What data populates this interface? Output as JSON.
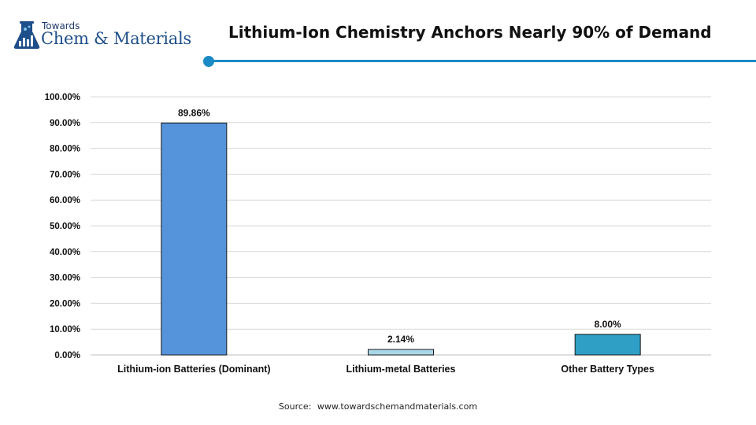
{
  "logo": {
    "top_text": "Towards",
    "main_text": "Chem & Materials",
    "icon": "flask-chart-icon"
  },
  "header": {
    "title": "Lithium-Ion Chemistry Anchors Nearly 90% of Demand",
    "accent_color": "#1a8ac7"
  },
  "chart_data": {
    "type": "bar",
    "title": "Lithium-Ion Chemistry Anchors Nearly 90% of Demand",
    "categories": [
      "Lithium-ion Batteries (Dominant)",
      "Lithium-metal Batteries",
      "Other Battery Types"
    ],
    "values": [
      89.86,
      2.14,
      8.0
    ],
    "data_labels": [
      "89.86%",
      "2.14%",
      "8.00%"
    ],
    "bar_colors": [
      "#5593db",
      "#a9d6e8",
      "#2f9fc6"
    ],
    "xlabel": "",
    "ylabel": "",
    "ylim": [
      0,
      100
    ],
    "yticks": [
      0,
      10,
      20,
      30,
      40,
      50,
      60,
      70,
      80,
      90,
      100
    ],
    "ytick_labels": [
      "0.00%",
      "10.00%",
      "20.00%",
      "30.00%",
      "40.00%",
      "50.00%",
      "60.00%",
      "70.00%",
      "80.00%",
      "90.00%",
      "100.00%"
    ],
    "grid": true,
    "legend": "none"
  },
  "footer": {
    "source_label": "Source:",
    "source_url": "www.towardschemandmaterials.com"
  }
}
